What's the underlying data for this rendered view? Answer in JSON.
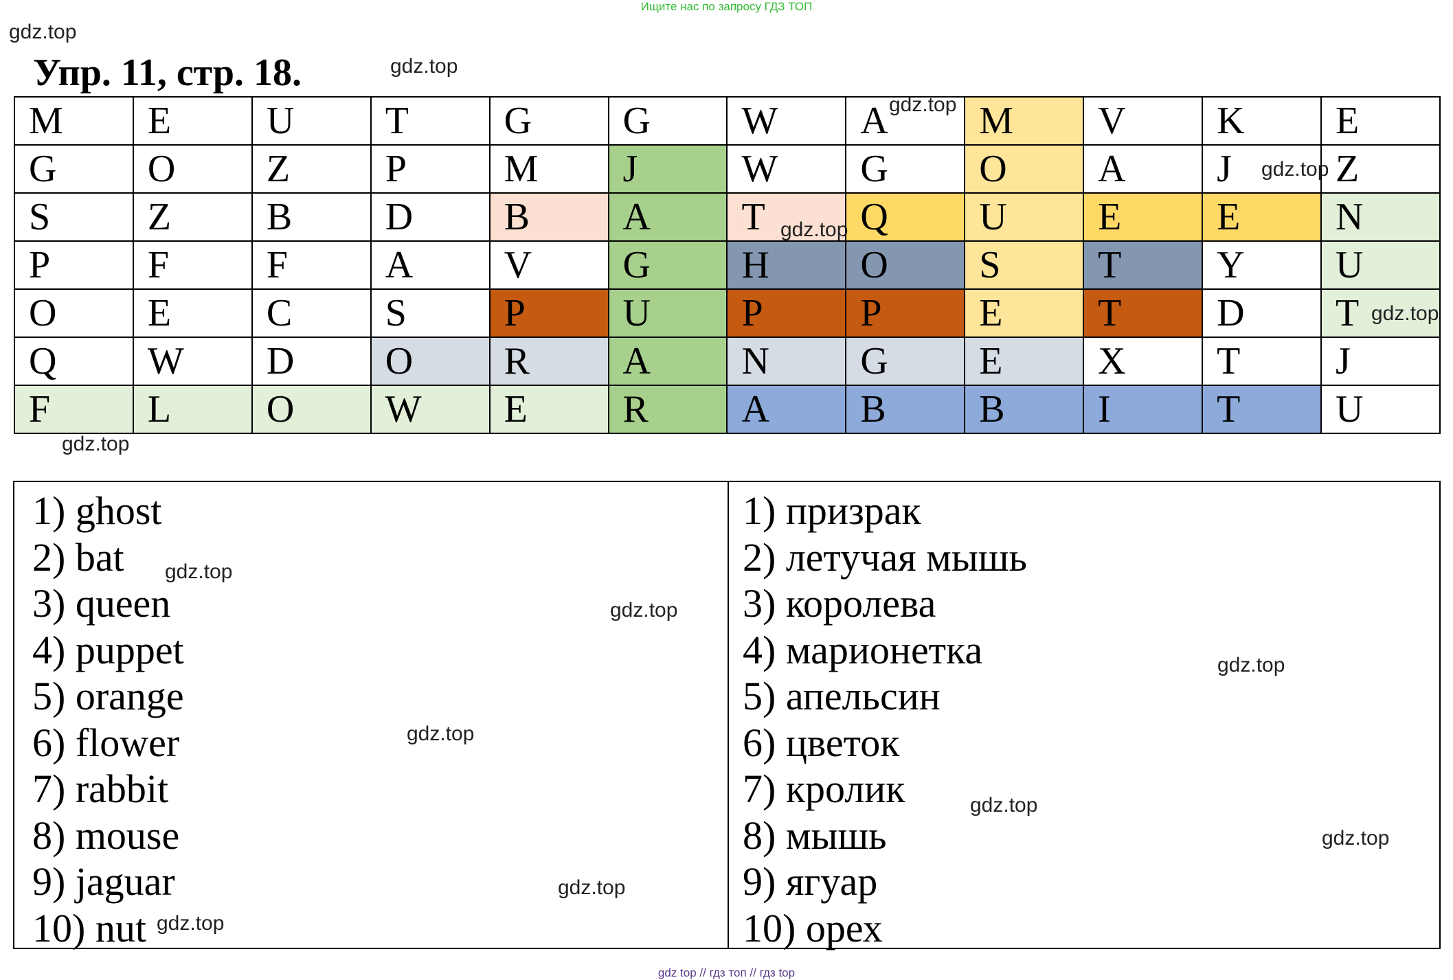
{
  "banner": "Ищите нас по запросу ГДЗ ТОП",
  "watermark": "gdz.top",
  "title": "Упр. 11, стр. 18.",
  "colors": {
    "light_pink": "#fce0d2",
    "green": "#a8d08d",
    "light_green": "#e2efd9",
    "yellow": "#fee599",
    "gold": "#ffd966",
    "slate": "#8497b0",
    "orange_brown": "#c55a11",
    "light_gray": "#d6dce4",
    "blue": "#8eaadb",
    "white": "#ffffff"
  },
  "grid": [
    [
      {
        "l": "M",
        "c": "white"
      },
      {
        "l": "E",
        "c": "white"
      },
      {
        "l": "U",
        "c": "white"
      },
      {
        "l": "T",
        "c": "white"
      },
      {
        "l": "G",
        "c": "white"
      },
      {
        "l": "G",
        "c": "white"
      },
      {
        "l": "W",
        "c": "white"
      },
      {
        "l": "A",
        "c": "white"
      },
      {
        "l": "M",
        "c": "yellow"
      },
      {
        "l": "V",
        "c": "white"
      },
      {
        "l": "K",
        "c": "white"
      },
      {
        "l": "E",
        "c": "white"
      }
    ],
    [
      {
        "l": "G",
        "c": "white"
      },
      {
        "l": "O",
        "c": "white"
      },
      {
        "l": "Z",
        "c": "white"
      },
      {
        "l": "P",
        "c": "white"
      },
      {
        "l": "M",
        "c": "white"
      },
      {
        "l": "J",
        "c": "green"
      },
      {
        "l": "W",
        "c": "white"
      },
      {
        "l": "G",
        "c": "white"
      },
      {
        "l": "O",
        "c": "yellow"
      },
      {
        "l": "A",
        "c": "white"
      },
      {
        "l": "J",
        "c": "white"
      },
      {
        "l": "Z",
        "c": "white"
      }
    ],
    [
      {
        "l": "S",
        "c": "white"
      },
      {
        "l": "Z",
        "c": "white"
      },
      {
        "l": "B",
        "c": "white"
      },
      {
        "l": "D",
        "c": "white"
      },
      {
        "l": "B",
        "c": "light_pink"
      },
      {
        "l": "A",
        "c": "green"
      },
      {
        "l": "T",
        "c": "light_pink"
      },
      {
        "l": "Q",
        "c": "gold"
      },
      {
        "l": "U",
        "c": "yellow"
      },
      {
        "l": "E",
        "c": "gold"
      },
      {
        "l": "E",
        "c": "gold"
      },
      {
        "l": "N",
        "c": "light_green"
      }
    ],
    [
      {
        "l": "P",
        "c": "white"
      },
      {
        "l": "F",
        "c": "white"
      },
      {
        "l": "F",
        "c": "white"
      },
      {
        "l": "A",
        "c": "white"
      },
      {
        "l": "V",
        "c": "white"
      },
      {
        "l": "G",
        "c": "green"
      },
      {
        "l": "H",
        "c": "slate"
      },
      {
        "l": "O",
        "c": "slate"
      },
      {
        "l": "S",
        "c": "yellow"
      },
      {
        "l": "T",
        "c": "slate"
      },
      {
        "l": "Y",
        "c": "white"
      },
      {
        "l": "U",
        "c": "light_green"
      }
    ],
    [
      {
        "l": "O",
        "c": "white"
      },
      {
        "l": "E",
        "c": "white"
      },
      {
        "l": "C",
        "c": "white"
      },
      {
        "l": "S",
        "c": "white"
      },
      {
        "l": "P",
        "c": "orange_brown"
      },
      {
        "l": "U",
        "c": "green"
      },
      {
        "l": "P",
        "c": "orange_brown"
      },
      {
        "l": "P",
        "c": "orange_brown"
      },
      {
        "l": "E",
        "c": "yellow"
      },
      {
        "l": "T",
        "c": "orange_brown"
      },
      {
        "l": "D",
        "c": "white"
      },
      {
        "l": "T",
        "c": "light_green"
      }
    ],
    [
      {
        "l": "Q",
        "c": "white"
      },
      {
        "l": "W",
        "c": "white"
      },
      {
        "l": "D",
        "c": "white"
      },
      {
        "l": "O",
        "c": "light_gray"
      },
      {
        "l": "R",
        "c": "light_gray"
      },
      {
        "l": "A",
        "c": "green"
      },
      {
        "l": "N",
        "c": "light_gray"
      },
      {
        "l": "G",
        "c": "light_gray"
      },
      {
        "l": "E",
        "c": "light_gray"
      },
      {
        "l": "X",
        "c": "white"
      },
      {
        "l": "T",
        "c": "white"
      },
      {
        "l": "J",
        "c": "white"
      }
    ],
    [
      {
        "l": "F",
        "c": "light_green"
      },
      {
        "l": "L",
        "c": "light_green"
      },
      {
        "l": "O",
        "c": "light_green"
      },
      {
        "l": "W",
        "c": "light_green"
      },
      {
        "l": "E",
        "c": "light_green"
      },
      {
        "l": "R",
        "c": "green"
      },
      {
        "l": "A",
        "c": "blue"
      },
      {
        "l": "B",
        "c": "blue"
      },
      {
        "l": "B",
        "c": "blue"
      },
      {
        "l": "I",
        "c": "blue"
      },
      {
        "l": "T",
        "c": "blue"
      },
      {
        "l": "U",
        "c": "white"
      }
    ]
  ],
  "english_words": [
    "1) ghost",
    "2) bat",
    "3) queen",
    "4) puppet",
    "5) orange",
    "6) flower",
    "7) rabbit",
    "8) mouse",
    "9) jaguar",
    "10) nut"
  ],
  "russian_words": [
    "1) призрак",
    "2) летучая мышь",
    "3) королева",
    "4) марионетка",
    "5) апельсин",
    "6) цветок",
    "7) кролик",
    "8) мышь",
    "9) ягуар",
    "10) орех"
  ],
  "footer": "gdz top  //  гдз топ  //  гдз top"
}
